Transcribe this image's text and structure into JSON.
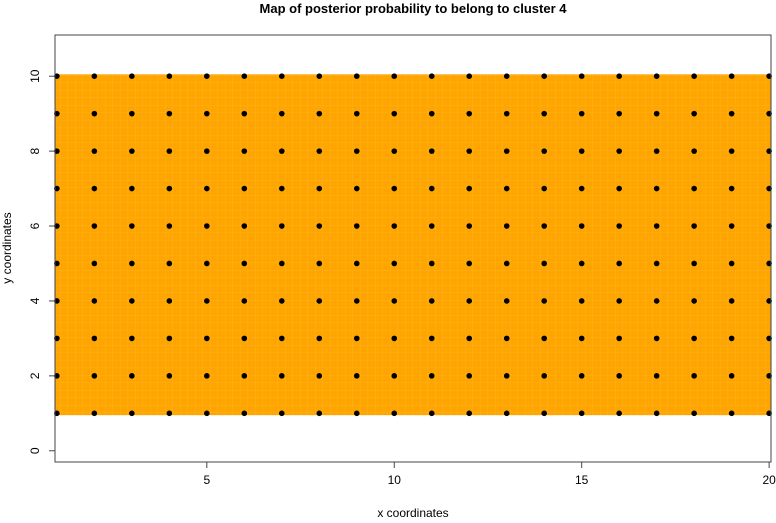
{
  "chart_data": {
    "type": "heatmap",
    "title": "Map of posterior probability to belong to cluster  4",
    "xlabel": "x coordinates",
    "ylabel": "y coordinates",
    "xlim": [
      0.95,
      20.05
    ],
    "ylim": [
      -0.3,
      11.1
    ],
    "xticks": [
      5,
      10,
      15,
      20
    ],
    "yticks": [
      0,
      2,
      4,
      6,
      8,
      10
    ],
    "grid": false,
    "fill_color": "#FFA500",
    "fill_range": {
      "x": [
        0.95,
        20.05
      ],
      "y": [
        0.95,
        10.05
      ]
    },
    "point_color": "#000000",
    "points": {
      "x": [
        1,
        2,
        3,
        4,
        5,
        6,
        7,
        8,
        9,
        10,
        11,
        12,
        13,
        14,
        15,
        16,
        17,
        18,
        19,
        20
      ],
      "y": [
        1,
        2,
        3,
        4,
        5,
        6,
        7,
        8,
        9,
        10
      ]
    }
  }
}
